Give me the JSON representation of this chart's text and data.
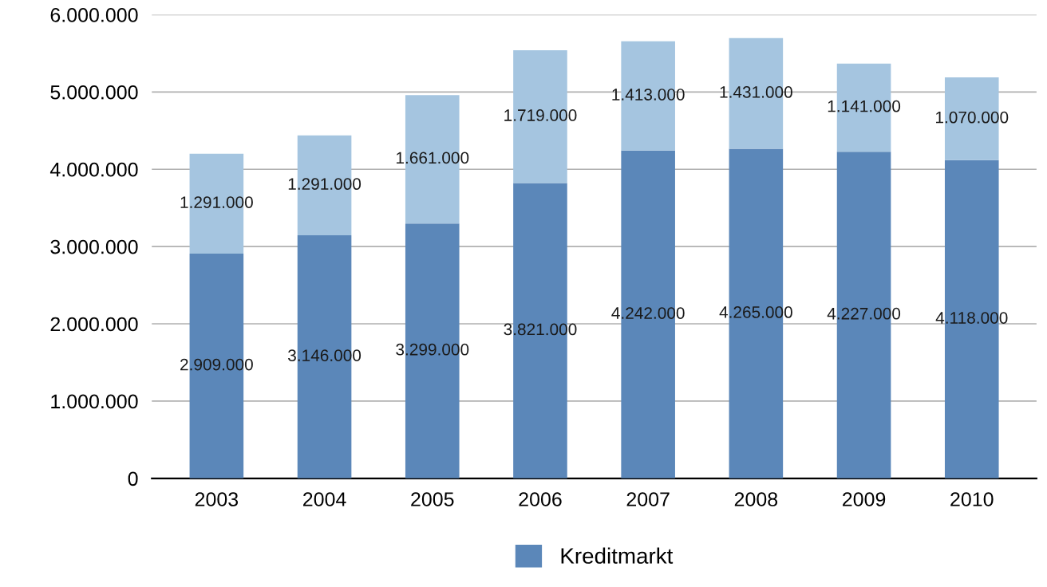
{
  "chart_data": {
    "type": "bar",
    "stacked": true,
    "categories": [
      "2003",
      "2004",
      "2005",
      "2006",
      "2007",
      "2008",
      "2009",
      "2010"
    ],
    "series": [
      {
        "name": "Kreditmarkt",
        "color": "#5b87b9",
        "values": [
          2909000,
          3146000,
          3299000,
          3821000,
          4242000,
          4265000,
          4227000,
          4118000
        ],
        "value_labels": [
          "2.909.000",
          "3.146.000",
          "3.299.000",
          "3.821.000",
          "4.242.000",
          "4.265.000",
          "4.227.000",
          "4.118.000"
        ]
      },
      {
        "color": "#a5c5e0",
        "values": [
          1291000,
          1291000,
          1661000,
          1719000,
          1413000,
          1431000,
          1141000,
          1070000
        ],
        "value_labels": [
          "1.291.000",
          "1.291.000",
          "1.661.000",
          "1.719.000",
          "1.413.000",
          "1.431.000",
          "1.141.000",
          "1.070.000"
        ]
      }
    ],
    "ylim": [
      0,
      6000000
    ],
    "yticks": [
      {
        "value": 0,
        "label": "0"
      },
      {
        "value": 1000000,
        "label": "1.000.000"
      },
      {
        "value": 2000000,
        "label": "2.000.000"
      },
      {
        "value": 3000000,
        "label": "3.000.000"
      },
      {
        "value": 4000000,
        "label": "4.000.000"
      },
      {
        "value": 5000000,
        "label": "5.000.000"
      },
      {
        "value": 6000000,
        "label": "6.000.000"
      }
    ],
    "grid": "y",
    "legend": "bottom"
  }
}
